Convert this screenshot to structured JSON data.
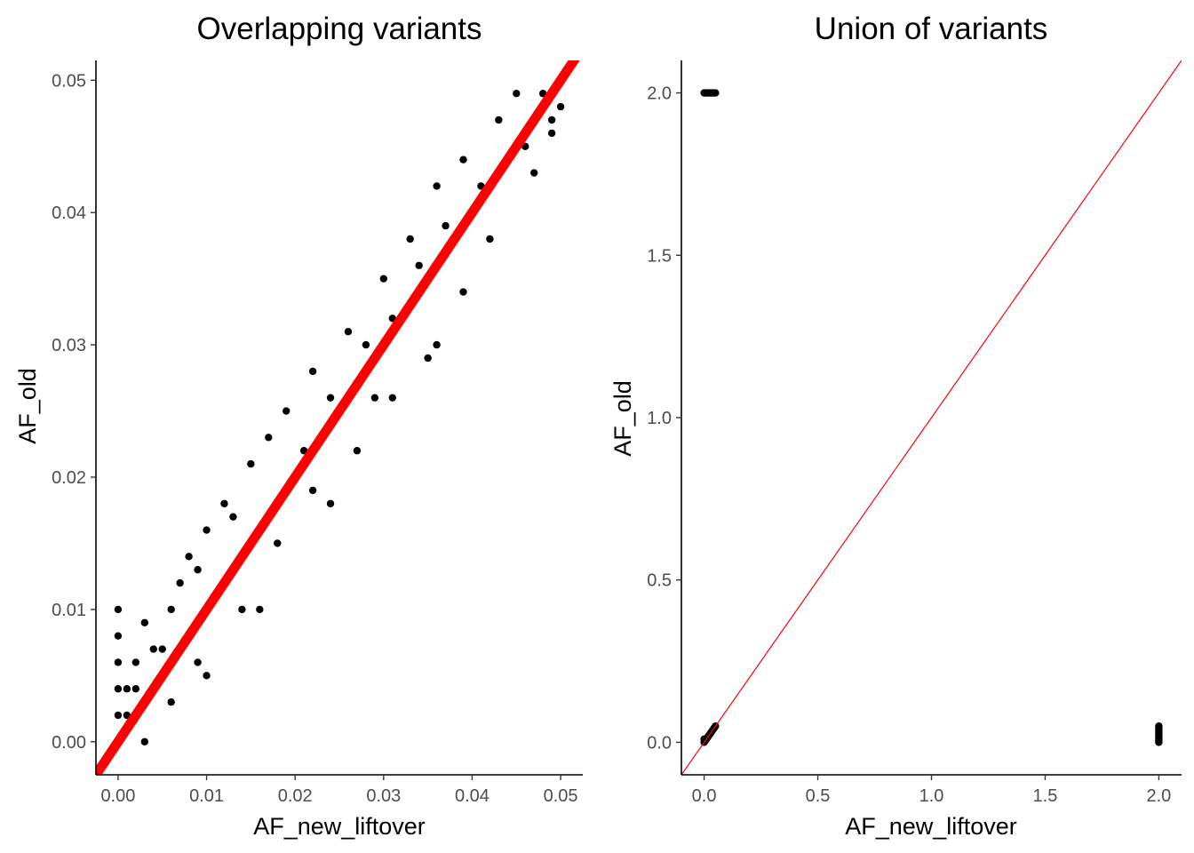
{
  "colors": {
    "points": "#000000",
    "identity_line": "#ff0000"
  },
  "chart_data": [
    {
      "type": "scatter",
      "title": "Overlapping variants",
      "xlabel": "AF_new_liftover",
      "ylabel": "AF_old",
      "xlim": [
        -0.0025,
        0.0525
      ],
      "ylim": [
        -0.0025,
        0.0515
      ],
      "xticks": [
        0.0,
        0.01,
        0.02,
        0.03,
        0.04,
        0.05
      ],
      "yticks": [
        0.0,
        0.01,
        0.02,
        0.03,
        0.04,
        0.05
      ],
      "xtick_labels": [
        "0.00",
        "0.01",
        "0.02",
        "0.03",
        "0.04",
        "0.05"
      ],
      "ytick_labels": [
        "0.00",
        "0.01",
        "0.02",
        "0.03",
        "0.04",
        "0.05"
      ],
      "grid": false,
      "reference_line": {
        "slope": 1,
        "intercept": 0,
        "color": "#ff0000",
        "weight": "thick"
      },
      "series": [
        {
          "values": [
            [
              0.0,
              0.0
            ],
            [
              0.0,
              0.002
            ],
            [
              0.0,
              0.004
            ],
            [
              0.0,
              0.006
            ],
            [
              0.0,
              0.008
            ],
            [
              0.0,
              0.01
            ],
            [
              0.001,
              0.002
            ],
            [
              0.001,
              0.004
            ],
            [
              0.002,
              0.004
            ],
            [
              0.002,
              0.006
            ],
            [
              0.003,
              0.009
            ],
            [
              0.004,
              0.007
            ],
            [
              0.005,
              0.007
            ],
            [
              0.006,
              0.01
            ],
            [
              0.007,
              0.012
            ],
            [
              0.008,
              0.014
            ],
            [
              0.009,
              0.013
            ],
            [
              0.01,
              0.016
            ],
            [
              0.012,
              0.018
            ],
            [
              0.013,
              0.017
            ],
            [
              0.015,
              0.021
            ],
            [
              0.017,
              0.023
            ],
            [
              0.019,
              0.025
            ],
            [
              0.021,
              0.022
            ],
            [
              0.022,
              0.028
            ],
            [
              0.024,
              0.026
            ],
            [
              0.026,
              0.031
            ],
            [
              0.028,
              0.03
            ],
            [
              0.03,
              0.035
            ],
            [
              0.031,
              0.032
            ],
            [
              0.033,
              0.038
            ],
            [
              0.034,
              0.036
            ],
            [
              0.036,
              0.042
            ],
            [
              0.037,
              0.039
            ],
            [
              0.039,
              0.044
            ],
            [
              0.041,
              0.042
            ],
            [
              0.043,
              0.047
            ],
            [
              0.045,
              0.049
            ],
            [
              0.046,
              0.045
            ],
            [
              0.048,
              0.049
            ],
            [
              0.049,
              0.047
            ],
            [
              0.05,
              0.048
            ],
            [
              0.003,
              0.0
            ],
            [
              0.006,
              0.003
            ],
            [
              0.01,
              0.005
            ],
            [
              0.014,
              0.01
            ],
            [
              0.018,
              0.015
            ],
            [
              0.022,
              0.019
            ],
            [
              0.027,
              0.022
            ],
            [
              0.031,
              0.026
            ],
            [
              0.035,
              0.029
            ],
            [
              0.039,
              0.034
            ],
            [
              0.042,
              0.038
            ],
            [
              0.047,
              0.043
            ],
            [
              0.049,
              0.046
            ],
            [
              0.036,
              0.03
            ],
            [
              0.029,
              0.026
            ],
            [
              0.024,
              0.018
            ],
            [
              0.016,
              0.01
            ],
            [
              0.009,
              0.006
            ]
          ]
        }
      ]
    },
    {
      "type": "scatter",
      "title": "Union of variants",
      "xlabel": "AF_new_liftover",
      "ylabel": "AF_old",
      "xlim": [
        -0.1,
        2.1
      ],
      "ylim": [
        -0.1,
        2.1
      ],
      "xticks": [
        0.0,
        0.5,
        1.0,
        1.5,
        2.0
      ],
      "yticks": [
        0.0,
        0.5,
        1.0,
        1.5,
        2.0
      ],
      "xtick_labels": [
        "0.0",
        "0.5",
        "1.0",
        "1.5",
        "2.0"
      ],
      "ytick_labels": [
        "0.0",
        "0.5",
        "1.0",
        "1.5",
        "2.0"
      ],
      "grid": false,
      "reference_line": {
        "slope": 1,
        "intercept": 0,
        "color": "#ff0000",
        "weight": "thin"
      },
      "series": [
        {
          "values": [
            [
              0.0,
              2.0
            ],
            [
              0.005,
              2.0
            ],
            [
              0.01,
              2.0
            ],
            [
              0.015,
              2.0
            ],
            [
              0.02,
              2.0
            ],
            [
              0.025,
              2.0
            ],
            [
              0.03,
              2.0
            ],
            [
              0.035,
              2.0
            ],
            [
              0.04,
              2.0
            ],
            [
              0.045,
              2.0
            ],
            [
              0.05,
              2.0
            ],
            [
              0.0,
              0.0
            ],
            [
              0.005,
              0.005
            ],
            [
              0.01,
              0.01
            ],
            [
              0.015,
              0.015
            ],
            [
              0.02,
              0.02
            ],
            [
              0.025,
              0.025
            ],
            [
              0.03,
              0.03
            ],
            [
              0.035,
              0.035
            ],
            [
              0.04,
              0.04
            ],
            [
              0.045,
              0.045
            ],
            [
              0.05,
              0.05
            ],
            [
              0.0,
              0.01
            ],
            [
              2.0,
              0.0
            ],
            [
              2.0,
              0.005
            ],
            [
              2.0,
              0.01
            ],
            [
              2.0,
              0.015
            ],
            [
              2.0,
              0.02
            ],
            [
              2.0,
              0.025
            ],
            [
              2.0,
              0.03
            ],
            [
              2.0,
              0.035
            ],
            [
              2.0,
              0.04
            ],
            [
              2.0,
              0.045
            ],
            [
              2.0,
              0.05
            ]
          ]
        }
      ]
    }
  ]
}
